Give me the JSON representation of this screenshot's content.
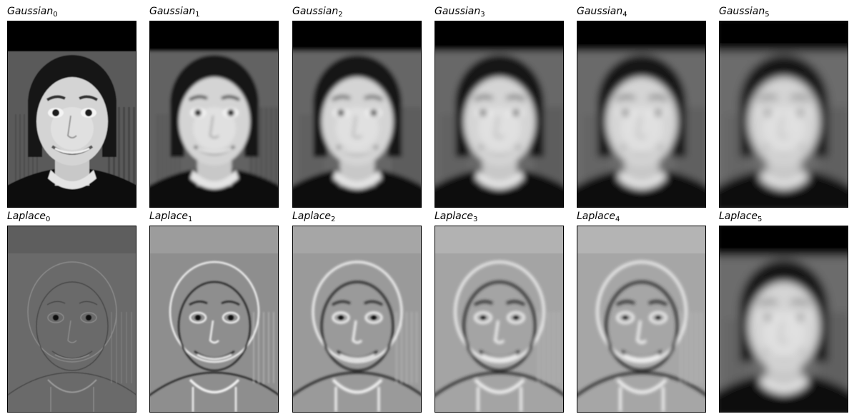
{
  "panels": [
    {
      "name": "Gaussian",
      "sub": "0",
      "kind": "gaussian",
      "level": 0,
      "row": 0,
      "col": 0
    },
    {
      "name": "Gaussian",
      "sub": "1",
      "kind": "gaussian",
      "level": 1,
      "row": 0,
      "col": 1
    },
    {
      "name": "Gaussian",
      "sub": "2",
      "kind": "gaussian",
      "level": 2,
      "row": 0,
      "col": 2
    },
    {
      "name": "Gaussian",
      "sub": "3",
      "kind": "gaussian",
      "level": 3,
      "row": 0,
      "col": 3
    },
    {
      "name": "Gaussian",
      "sub": "4",
      "kind": "gaussian",
      "level": 4,
      "row": 0,
      "col": 4
    },
    {
      "name": "Gaussian",
      "sub": "5",
      "kind": "gaussian",
      "level": 5,
      "row": 0,
      "col": 5
    },
    {
      "name": "Laplace",
      "sub": "0",
      "kind": "laplace",
      "level": 0,
      "row": 1,
      "col": 0
    },
    {
      "name": "Laplace",
      "sub": "1",
      "kind": "laplace",
      "level": 1,
      "row": 1,
      "col": 1
    },
    {
      "name": "Laplace",
      "sub": "2",
      "kind": "laplace",
      "level": 2,
      "row": 1,
      "col": 2
    },
    {
      "name": "Laplace",
      "sub": "3",
      "kind": "laplace",
      "level": 3,
      "row": 1,
      "col": 3
    },
    {
      "name": "Laplace",
      "sub": "4",
      "kind": "laplace",
      "level": 4,
      "row": 1,
      "col": 4
    },
    {
      "name": "Laplace",
      "sub": "5",
      "kind": "gaussian",
      "level": 5,
      "row": 1,
      "col": 5
    }
  ],
  "colors": {
    "frame": "#000000",
    "background": "#ffffff"
  }
}
